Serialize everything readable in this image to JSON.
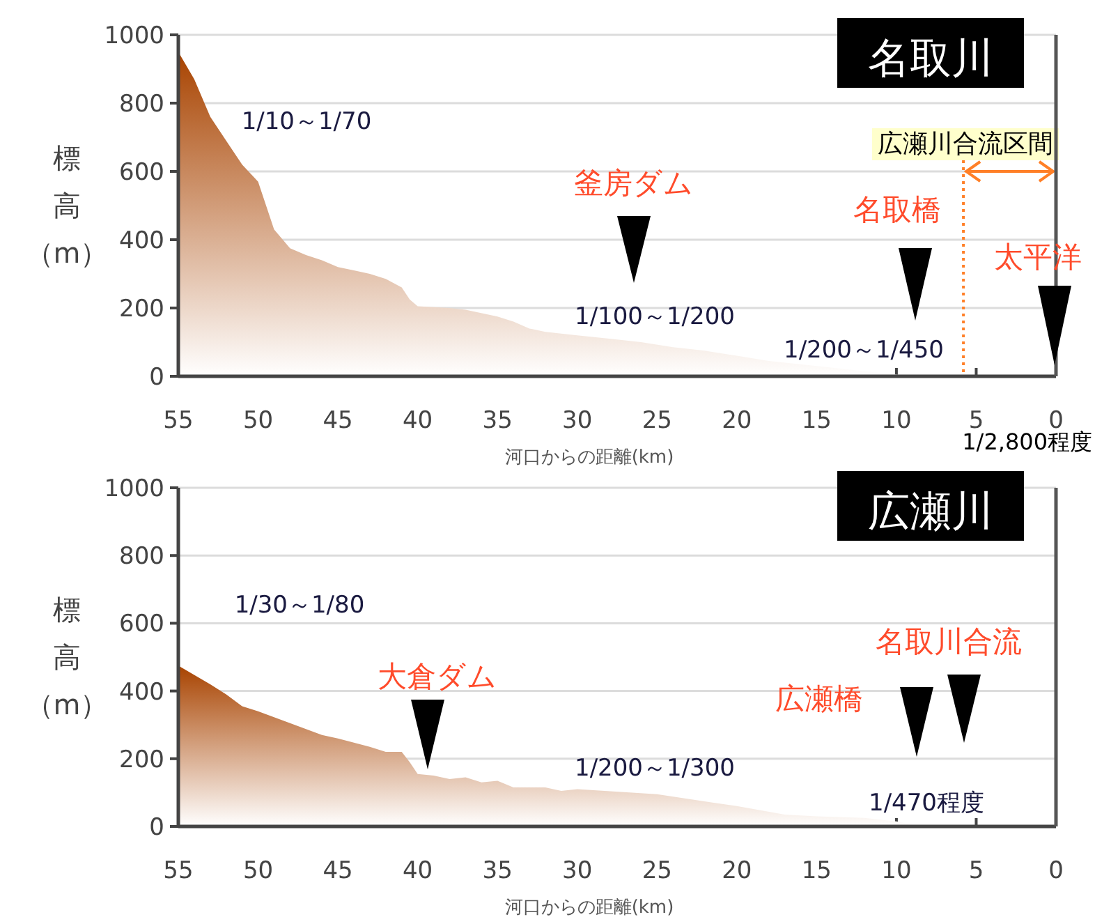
{
  "chart_data": [
    {
      "type": "area",
      "title": "名取川",
      "xlabel": "河口からの距離(km)",
      "ylabel": "標高（m）",
      "xlim": [
        55,
        0
      ],
      "ylim": [
        0,
        1000
      ],
      "xticks": [
        55,
        50,
        45,
        40,
        35,
        30,
        25,
        20,
        15,
        10,
        5,
        0
      ],
      "yticks": [
        0,
        200,
        400,
        600,
        800,
        1000
      ],
      "grid": "y",
      "series": [
        {
          "color": "#a84300",
          "x": [
            55,
            54,
            53,
            52,
            51,
            50,
            49.5,
            49,
            48,
            47,
            46,
            45,
            44,
            43,
            42,
            41,
            40.5,
            40,
            38,
            37,
            35,
            34,
            33,
            32,
            30,
            28,
            26,
            24,
            22,
            20,
            18,
            15,
            12,
            10,
            9,
            8.5
          ],
          "values": [
            950,
            870,
            760,
            690,
            620,
            570,
            500,
            430,
            375,
            355,
            340,
            320,
            310,
            300,
            285,
            260,
            225,
            205,
            200,
            195,
            175,
            160,
            140,
            130,
            120,
            110,
            100,
            85,
            75,
            60,
            45,
            30,
            15,
            5,
            1,
            0
          ]
        }
      ],
      "ref_lines": [
        {
          "axis": "x",
          "value": 5.8,
          "label": "広瀬川合流区間",
          "color": "#ff7f27",
          "line_style": "dotted"
        }
      ],
      "annotations": [
        "釜房ダム",
        "名取橋",
        "太平洋",
        "1/10～1/70",
        "1/100～1/200",
        "1/200～1/450",
        "1/2,800程度"
      ]
    },
    {
      "type": "area",
      "title": "広瀬川",
      "xlabel": "河口からの距離(km)",
      "ylabel": "標高（m）",
      "xlim": [
        55,
        0
      ],
      "ylim": [
        0,
        1000
      ],
      "xticks": [
        55,
        50,
        45,
        40,
        35,
        30,
        25,
        20,
        15,
        10,
        5,
        0
      ],
      "yticks": [
        0,
        200,
        400,
        600,
        800,
        1000
      ],
      "grid": "y",
      "series": [
        {
          "color": "#a84300",
          "x": [
            55,
            53,
            52,
            51,
            50,
            48,
            46,
            45,
            43,
            42,
            41,
            40.5,
            40,
            39,
            38,
            37,
            36,
            35,
            34,
            32,
            31,
            30,
            25,
            20,
            17,
            15,
            12,
            10,
            9,
            8,
            6
          ],
          "values": [
            475,
            420,
            390,
            355,
            340,
            305,
            270,
            260,
            235,
            220,
            220,
            190,
            155,
            150,
            140,
            145,
            130,
            135,
            115,
            115,
            105,
            110,
            95,
            60,
            35,
            30,
            25,
            15,
            5,
            0,
            0
          ]
        }
      ],
      "annotations": [
        "大倉ダム",
        "広瀬橋",
        "名取川合流",
        "1/30～1/80",
        "1/200～1/300",
        "1/470程度"
      ]
    }
  ]
}
